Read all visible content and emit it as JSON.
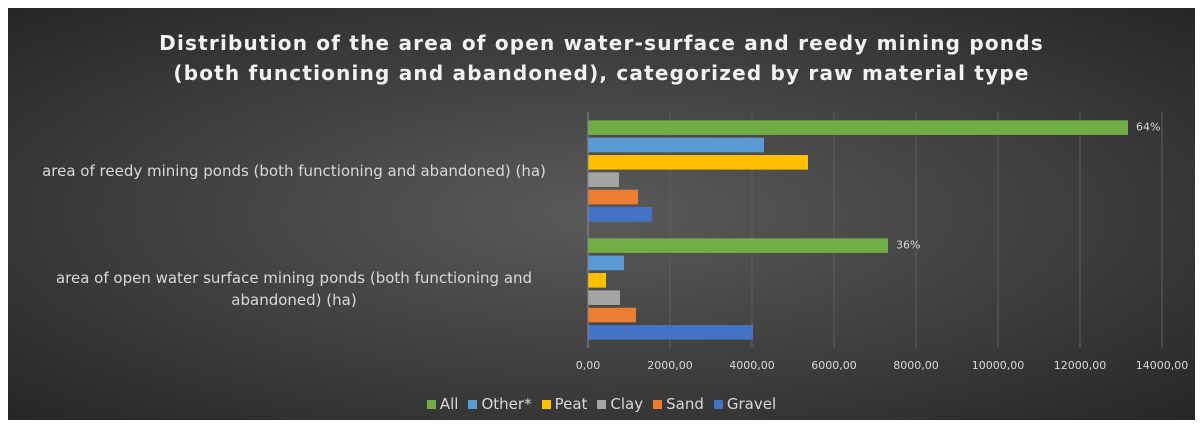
{
  "chart_data": {
    "type": "hbar",
    "title": "Distribution of the area of open water-surface and reedy mining ponds\n(both functioning and abandoned), categorized by raw material type",
    "categories": [
      "area of open water surface mining ponds (both functioning and abandoned) (ha)",
      "area of reedy mining ponds (both functioning and abandoned) (ha)"
    ],
    "series": [
      {
        "name": "Gravel",
        "color": "#4472c4",
        "values": [
          4024,
          1561
        ]
      },
      {
        "name": "Sand",
        "color": "#ed7d31",
        "values": [
          1171,
          1220
        ]
      },
      {
        "name": "Clay",
        "color": "#a5a5a5",
        "values": [
          780,
          756
        ]
      },
      {
        "name": "Peat",
        "color": "#ffc000",
        "values": [
          439,
          5366
        ]
      },
      {
        "name": "Other*",
        "color": "#5b9bd5",
        "values": [
          878,
          4293
        ]
      },
      {
        "name": "All",
        "color": "#70ad47",
        "values": [
          7317,
          13170
        ],
        "data_labels": [
          "36%",
          "64%"
        ]
      }
    ],
    "xlim": [
      0,
      14000
    ],
    "xticks": [
      {
        "value": 0,
        "label": "0,00"
      },
      {
        "value": 2000,
        "label": "2000,00"
      },
      {
        "value": 4000,
        "label": "4000,00"
      },
      {
        "value": 6000,
        "label": "6000,00"
      },
      {
        "value": 8000,
        "label": "8000,00"
      },
      {
        "value": 10000,
        "label": "10000,00"
      },
      {
        "value": 12000,
        "label": "12000,00"
      },
      {
        "value": 14000,
        "label": "14000,00"
      }
    ],
    "grid": true,
    "legend": "bottom"
  }
}
